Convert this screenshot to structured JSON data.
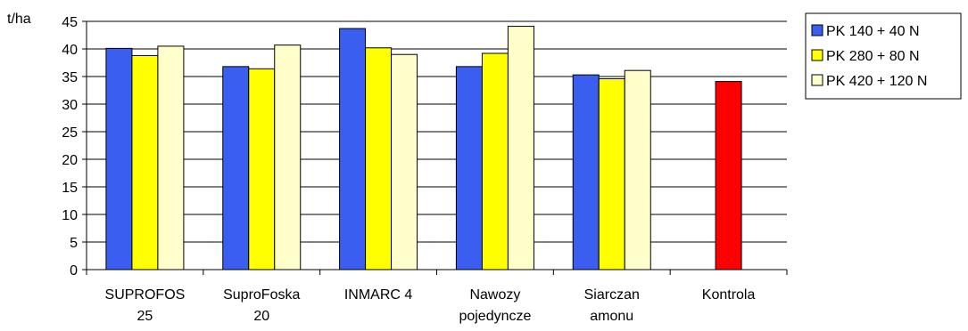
{
  "chart_data": {
    "type": "bar",
    "ylabel": "t/ha",
    "ylim": [
      0,
      45
    ],
    "yticks": [
      0,
      5,
      10,
      15,
      20,
      25,
      30,
      35,
      40,
      45
    ],
    "grid": true,
    "legend_position": "top-right",
    "categories": [
      [
        "SUPROFOS",
        "25"
      ],
      [
        "SuproFoska",
        "20"
      ],
      [
        "INMARC 4"
      ],
      [
        "Nawozy",
        "pojedyncze"
      ],
      [
        "Siarczan",
        "amonu"
      ],
      [
        "Kontrola"
      ]
    ],
    "series": [
      {
        "name": "PK 140 + 40 N",
        "color": "#3a5ff0",
        "values": [
          40.1,
          36.8,
          43.7,
          36.8,
          35.3,
          null
        ]
      },
      {
        "name": "PK 280 + 80 N",
        "color": "#ffff00",
        "values": [
          38.8,
          36.4,
          40.2,
          39.2,
          34.6,
          null
        ]
      },
      {
        "name": "PK 420 + 120 N",
        "color": "#ffffcc",
        "values": [
          40.5,
          40.7,
          39.0,
          44.1,
          36.1,
          null
        ]
      }
    ],
    "control": {
      "category_index": 5,
      "value": 34.1,
      "color": "#ff0000"
    }
  }
}
